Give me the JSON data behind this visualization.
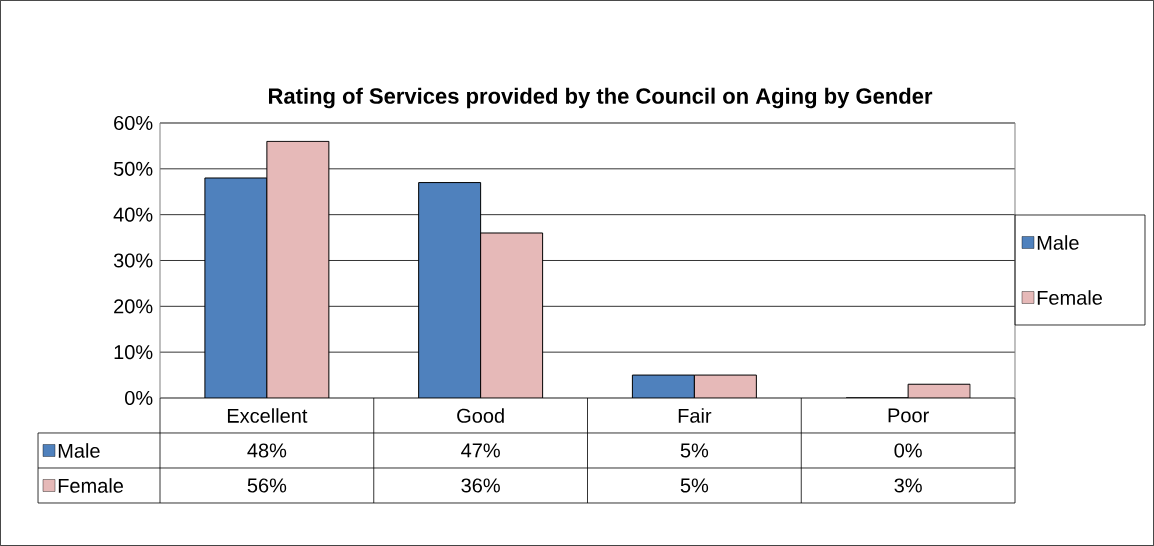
{
  "chart_data": {
    "type": "bar",
    "title": "Rating of Services provided by the Council on Aging by Gender",
    "categories": [
      "Excellent",
      "Good",
      "Fair",
      "Poor"
    ],
    "series": [
      {
        "name": "Male",
        "color": "#4f81bd",
        "values": [
          48,
          47,
          5,
          0
        ],
        "value_labels": [
          "48%",
          "47%",
          "5%",
          "0%"
        ]
      },
      {
        "name": "Female",
        "color": "#e6b9b8",
        "values": [
          56,
          36,
          5,
          3
        ],
        "value_labels": [
          "56%",
          "36%",
          "5%",
          "3%"
        ]
      }
    ],
    "ylim": [
      0,
      60
    ],
    "yticks": [
      {
        "value": 0,
        "label": "0%"
      },
      {
        "value": 10,
        "label": "10%"
      },
      {
        "value": 20,
        "label": "20%"
      },
      {
        "value": 30,
        "label": "30%"
      },
      {
        "value": 40,
        "label": "40%"
      },
      {
        "value": 50,
        "label": "50%"
      },
      {
        "value": 60,
        "label": "60%"
      }
    ],
    "grid": "y",
    "legend": "right"
  }
}
